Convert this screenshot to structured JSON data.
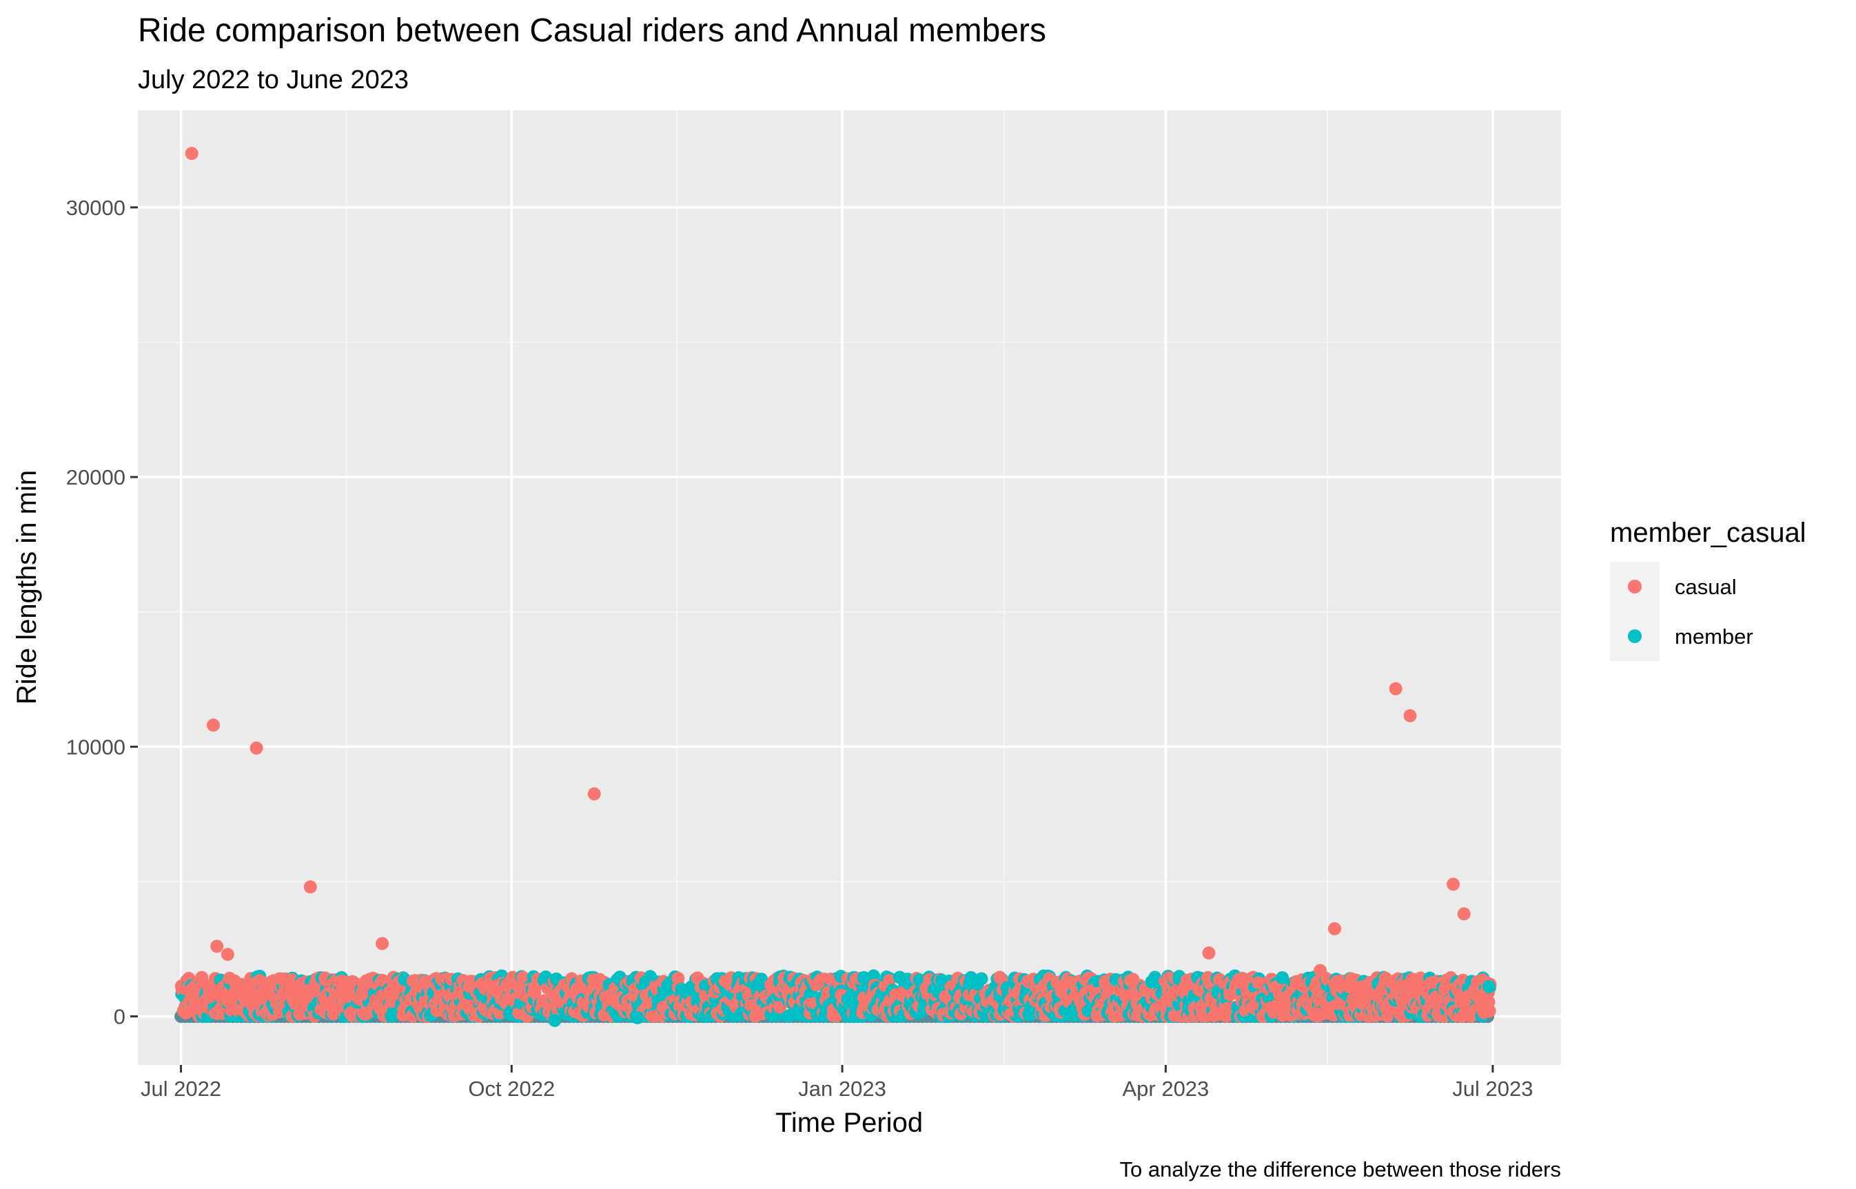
{
  "chart_data": {
    "type": "scatter",
    "title": "Ride comparison between Casual riders and Annual members",
    "subtitle": "July 2022 to June 2023",
    "caption": "To analyze the difference between those riders",
    "xlabel": "Time Period",
    "ylabel": "Ride lengths in min",
    "x_axis": {
      "type": "date",
      "range": [
        "2022-06-19",
        "2023-07-20"
      ],
      "ticks": [
        {
          "date": "2022-07-01",
          "label": "Jul 2022"
        },
        {
          "date": "2022-10-01",
          "label": "Oct 2022"
        },
        {
          "date": "2023-01-01",
          "label": "Jan 2023"
        },
        {
          "date": "2023-04-01",
          "label": "Apr 2023"
        },
        {
          "date": "2023-07-01",
          "label": "Jul 2023"
        }
      ],
      "minor_ticks": [
        "2022-08-16",
        "2022-11-16",
        "2023-02-15",
        "2023-05-16"
      ]
    },
    "y_axis": {
      "range": [
        -1800,
        33600
      ],
      "ticks": [
        0,
        10000,
        20000,
        30000
      ],
      "minor_ticks": [
        5000,
        15000,
        25000
      ]
    },
    "grid": true,
    "legend": {
      "title": "member_casual",
      "position": "right",
      "entries": [
        {
          "label": "casual",
          "color": "#F8766D"
        },
        {
          "label": "member",
          "color": "#00BFC4"
        }
      ]
    },
    "series": [
      {
        "name": "casual",
        "color": "#F8766D",
        "outliers": [
          {
            "x": "2022-07-04",
            "y": 32000
          },
          {
            "x": "2022-07-10",
            "y": 10800
          },
          {
            "x": "2022-07-11",
            "y": 2600
          },
          {
            "x": "2022-07-14",
            "y": 2300
          },
          {
            "x": "2022-07-22",
            "y": 9950
          },
          {
            "x": "2022-08-06",
            "y": 4800
          },
          {
            "x": "2022-08-26",
            "y": 2700
          },
          {
            "x": "2022-10-24",
            "y": 8250
          },
          {
            "x": "2023-04-13",
            "y": 2350
          },
          {
            "x": "2023-05-18",
            "y": 3250
          },
          {
            "x": "2023-05-14",
            "y": 1700
          },
          {
            "x": "2023-06-04",
            "y": 12150
          },
          {
            "x": "2023-06-08",
            "y": 11150
          },
          {
            "x": "2023-06-20",
            "y": 4900
          },
          {
            "x": "2023-06-23",
            "y": 3800
          }
        ],
        "bulk_range_y": [
          0,
          1450
        ],
        "bulk_range_x": [
          "2022-07-01",
          "2023-06-30"
        ]
      },
      {
        "name": "member",
        "color": "#00BFC4",
        "outliers": [
          {
            "x": "2022-10-13",
            "y": -150
          },
          {
            "x": "2022-11-05",
            "y": -50
          },
          {
            "x": "2023-06-30",
            "y": 1100
          }
        ],
        "bulk_range_y": [
          0,
          1500
        ],
        "bulk_range_x": [
          "2022-07-01",
          "2023-06-30"
        ]
      }
    ]
  },
  "colors": {
    "panel_background": "#EBEBEB",
    "grid_major": "#FFFFFF",
    "grid_minor": "#F5F5F5",
    "legend_key_background": "#F2F2F2",
    "baseline_point": "#5A8A9A"
  }
}
